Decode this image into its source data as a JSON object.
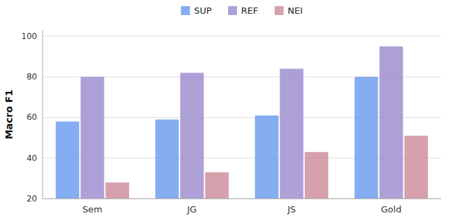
{
  "chart_data": {
    "type": "bar",
    "categories": [
      "Sem",
      "JG",
      "JS",
      "Gold"
    ],
    "series": [
      {
        "name": "SUP",
        "color": "#6699ee",
        "values": [
          58,
          59,
          61,
          80
        ]
      },
      {
        "name": "REF",
        "color": "#9988cc",
        "values": [
          80,
          82,
          84,
          95
        ]
      },
      {
        "name": "NEI",
        "color": "#cc8899",
        "values": [
          28,
          33,
          43,
          51
        ]
      }
    ],
    "y_label": "Macro F1",
    "ylim": [
      20,
      103
    ],
    "yticks": [
      20,
      40,
      60,
      80,
      100
    ],
    "grid": true,
    "legend": "top"
  }
}
